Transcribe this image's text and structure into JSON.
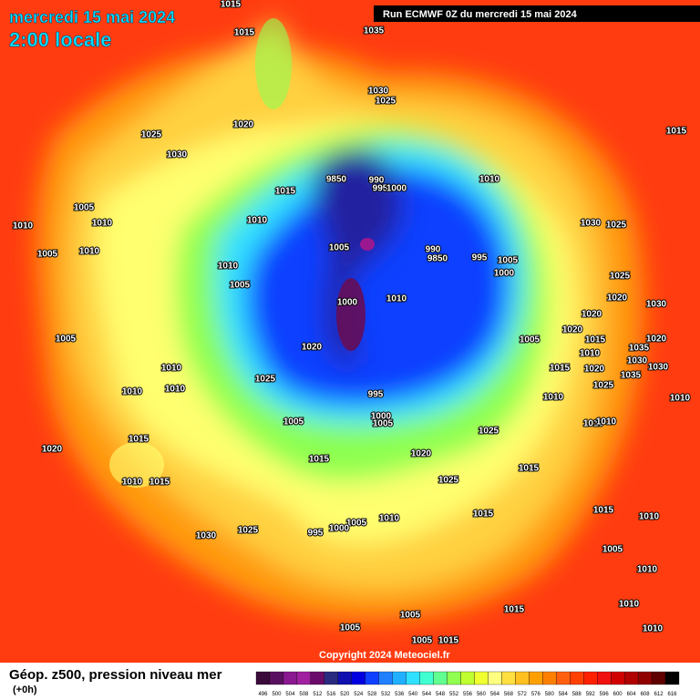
{
  "header": {
    "date": "mercredi 15 mai 2024",
    "time": "2:00 locale"
  },
  "run_label": "Run ECMWF 0Z du mercredi 15 mai 2024",
  "copyright": "Copyright 2024 Meteociel.fr",
  "legend": {
    "title": "Géop. z500, pression niveau mer",
    "step": "(+0h)",
    "labels": [
      "496",
      "500",
      "504",
      "508",
      "512",
      "516",
      "520",
      "524",
      "528",
      "532",
      "536",
      "540",
      "544",
      "548",
      "552",
      "556",
      "560",
      "564",
      "568",
      "572",
      "576",
      "580",
      "584",
      "588",
      "592",
      "596",
      "600",
      "604",
      "608",
      "612",
      "616"
    ],
    "colors": [
      "#3a0a3a",
      "#5a1060",
      "#8a1890",
      "#a020a0",
      "#6a0a6a",
      "#2a2a80",
      "#1010b0",
      "#0000e0",
      "#1040ff",
      "#2080ff",
      "#20b0ff",
      "#30e0ff",
      "#40ffd0",
      "#60ff90",
      "#90ff50",
      "#c0ff30",
      "#f0ff30",
      "#ffff80",
      "#ffe040",
      "#ffc020",
      "#ffa000",
      "#ff8000",
      "#ff6010",
      "#ff4000",
      "#ff2000",
      "#f01010",
      "#d00000",
      "#b00000",
      "#900000",
      "#600000",
      "#000000"
    ]
  },
  "isobar_labels": [
    "1015",
    "1015",
    "1035",
    "1030",
    "1025",
    "1020",
    "1025",
    "1030",
    "1015",
    "9850",
    "990",
    "995",
    "1000",
    "1010",
    "1015",
    "1005",
    "1010",
    "1010",
    "1010",
    "1030",
    "1025",
    "1005",
    "990",
    "9850",
    "995",
    "1005",
    "1000",
    "1005",
    "1010",
    "1010",
    "1005",
    "1025",
    "1020",
    "1000",
    "1010",
    "1030",
    "1020",
    "1020",
    "1005",
    "1020",
    "1005",
    "1015",
    "1035",
    "1020",
    "1010",
    "1010",
    "1020",
    "1030",
    "1015",
    "1035",
    "1030",
    "1025",
    "1025",
    "1010",
    "1010",
    "995",
    "1010",
    "1010",
    "1005",
    "1000",
    "1005",
    "1010",
    "1010",
    "1025",
    "1015",
    "1020",
    "1020",
    "1015",
    "1015",
    "1025",
    "1010",
    "1015",
    "1015",
    "1010",
    "1010",
    "1005",
    "1000",
    "1015",
    "995",
    "1030",
    "1025",
    "1005",
    "1010",
    "1010",
    "1015",
    "1005",
    "1010",
    "1005",
    "1005",
    "1015"
  ]
}
